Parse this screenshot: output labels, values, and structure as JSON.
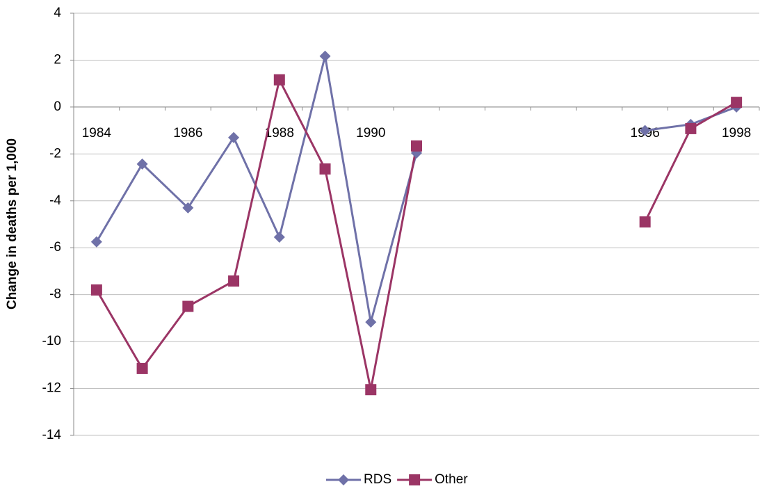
{
  "chart_data": {
    "type": "line",
    "y_label": "Change in deaths per 1,000",
    "categories": [
      "1984",
      null,
      "1986",
      null,
      "1988",
      null,
      "1990",
      null,
      null,
      null,
      null,
      null,
      "1996",
      null,
      "1998"
    ],
    "series": [
      {
        "name": "RDS",
        "color": "#6f71a8",
        "marker": "diamond",
        "values": [
          -5.75,
          -2.43,
          -4.3,
          -1.3,
          -5.55,
          2.17,
          -9.17,
          -1.96,
          null,
          null,
          null,
          null,
          -1.0,
          -0.74,
          0.0
        ]
      },
      {
        "name": "Other",
        "color": "#9b3565",
        "marker": "square",
        "values": [
          -7.8,
          -11.15,
          -8.5,
          -7.42,
          1.16,
          -2.64,
          -12.05,
          -1.66,
          null,
          null,
          null,
          null,
          -4.9,
          -0.92,
          0.2
        ]
      }
    ],
    "ylim": [
      -14,
      4
    ],
    "yticks": [
      -14,
      -12,
      -10,
      -8,
      -6,
      -4,
      -2,
      0,
      2,
      4
    ],
    "grid": true,
    "legend": "bottom"
  }
}
